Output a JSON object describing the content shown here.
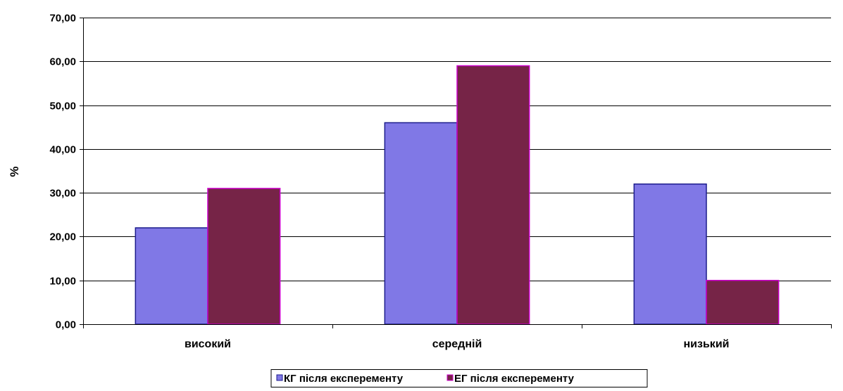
{
  "chart_data": {
    "type": "bar",
    "title": "",
    "xlabel": "",
    "ylabel": "%",
    "ylim": [
      0,
      70
    ],
    "ytick_step": 10,
    "ytick_labels": [
      "0,00",
      "10,00",
      "20,00",
      "30,00",
      "40,00",
      "50,00",
      "60,00",
      "70,00"
    ],
    "grid": true,
    "legend_position": "bottom",
    "categories": [
      "високий",
      "середній",
      "низький"
    ],
    "series": [
      {
        "name": "КГ після експеременту",
        "values": [
          22.0,
          46.0,
          32.0
        ],
        "color": "#8078e6",
        "stroke": "#1c1c8c"
      },
      {
        "name": "ЕГ після експеременту",
        "values": [
          31.0,
          59.0,
          10.0
        ],
        "color": "#762447",
        "stroke": "#cc00cc"
      }
    ]
  }
}
